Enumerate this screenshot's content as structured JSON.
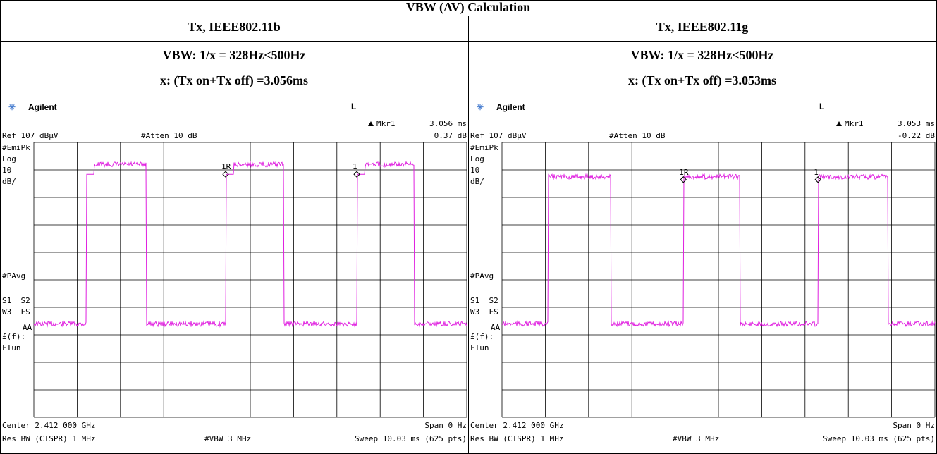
{
  "title": "VBW (AV) Calculation",
  "columns": [
    {
      "header": "Tx, IEEE802.11b",
      "vbw": "VBW: 1/x = 328Hz<500Hz",
      "x": "x: (Tx on+Tx off) =3.056ms",
      "screen": {
        "brand": "Agilent",
        "mode": "L",
        "marker_label": "Mkr1",
        "marker_value": "3.056 ms",
        "ref": "Ref 107 dBµV",
        "atten": "#Atten 10 dB",
        "delta": "0.37 dB",
        "side_labels": [
          "#EmiPk",
          "Log",
          "10",
          "dB/",
          "#PAvg",
          "S1  S2",
          "W3  FS",
          "AA",
          "£(f):",
          "FTun"
        ],
        "markers": [
          "1R",
          "1"
        ],
        "center": "Center 2.412 000 GHz",
        "span": "Span 0 Hz",
        "rbw": "Res BW (CISPR) 1 MHz",
        "vbw": "#VBW 3 MHz",
        "sweep": "Sweep 10.03 ms (625 pts)"
      }
    },
    {
      "header": "Tx, IEEE802.11g",
      "vbw": "VBW: 1/x = 328Hz<500Hz",
      "x": "x: (Tx on+Tx off) =3.053ms",
      "screen": {
        "brand": "Agilent",
        "mode": "L",
        "marker_label": "Mkr1",
        "marker_value": "3.053 ms",
        "ref": "Ref 107 dBµV",
        "atten": "#Atten 10 dB",
        "delta": "-0.22 dB",
        "side_labels": [
          "#EmiPk",
          "Log",
          "10",
          "dB/",
          "#PAvg",
          "S1  S2",
          "W3  FS",
          "AA",
          "£(f):",
          "FTun"
        ],
        "markers": [
          "1R",
          "1"
        ],
        "center": "Center 2.412 000 GHz",
        "span": "Span 0 Hz",
        "rbw": "Res BW (CISPR) 1 MHz",
        "vbw": "#VBW 3 MHz",
        "sweep": "Sweep 10.03 ms (625 pts)"
      }
    }
  ]
}
